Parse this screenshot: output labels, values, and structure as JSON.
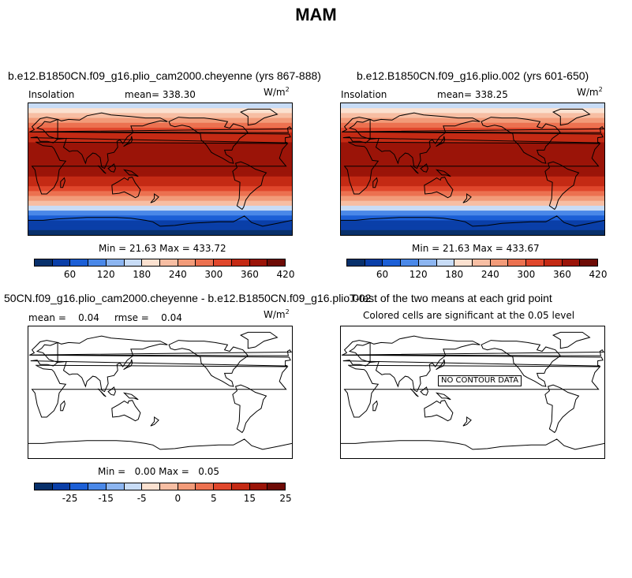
{
  "figure": {
    "title": "MAM"
  },
  "colors": {
    "scale": [
      "#08306b",
      "#0a3fa8",
      "#1c5fd6",
      "#4a88e8",
      "#8cb5f0",
      "#c8dcf6",
      "#fbe1d0",
      "#f7bea3",
      "#f29b79",
      "#ec7150",
      "#e0472c",
      "#c42a14",
      "#9b1408",
      "#6e0b06"
    ],
    "land_outline": "#000000"
  },
  "panels": [
    {
      "title": "b.e12.B1850CN.f09_g16.plio_cam2000.cheyenne (yrs 867-888)",
      "left_label": "Insolation",
      "center_label": "mean= 338.30",
      "units": "W/m",
      "units_sup": "2",
      "minmax": "Min =  21.63 Max = 433.72",
      "field": "insolation"
    },
    {
      "title": "b.e12.B1850CN.f09_g16.plio.002 (yrs 601-650)",
      "left_label": "Insolation",
      "center_label": "mean= 338.25",
      "units": "W/m",
      "units_sup": "2",
      "minmax": "Min =  21.63 Max = 433.67",
      "field": "insolation"
    },
    {
      "title": "50CN.f09_g16.plio_cam2000.cheyenne - b.e12.B1850CN.f09_g16.plio.002",
      "left_label": "mean =    0.04     rmse =    0.04",
      "units": "W/m",
      "units_sup": "2",
      "minmax": "Min =   0.00 Max =   0.05",
      "field": "blank"
    },
    {
      "title": "T-test of the two means at each grid point",
      "center_label": "Colored cells are significant at the 0.05 level",
      "no_data_label": "NO CONTOUR DATA",
      "field": "blank"
    }
  ],
  "colorbars": [
    {
      "ticks": [
        "60",
        "120",
        "180",
        "240",
        "300",
        "360",
        "420"
      ]
    },
    {
      "ticks": [
        "60",
        "120",
        "180",
        "240",
        "300",
        "360",
        "420"
      ]
    },
    {
      "ticks": [
        "-25",
        "-15",
        "-5",
        "0",
        "5",
        "15",
        "25"
      ]
    }
  ]
}
